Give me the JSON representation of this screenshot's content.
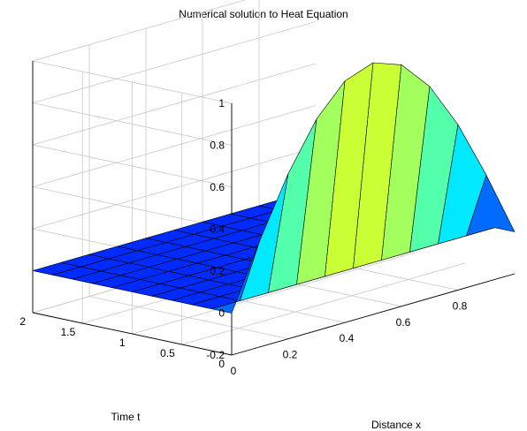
{
  "chart_data": {
    "type": "surface",
    "title": "Numerical solution to Heat Equation",
    "xlabel": "Distance x",
    "ylabel": "Time t",
    "zlabel": "",
    "x_ticks": [
      "0",
      "0.2",
      "0.4",
      "0.6",
      "0.8"
    ],
    "y_ticks": [
      "0",
      "0.5",
      "1",
      "1.5",
      "2"
    ],
    "z_ticks": [
      "-0.2",
      "0",
      "0.2",
      "0.4",
      "0.6",
      "0.8",
      "1"
    ],
    "xlim": [
      0,
      1
    ],
    "ylim": [
      0,
      2
    ],
    "zlim": [
      -0.2,
      1
    ],
    "grid": true,
    "colormap": "jet",
    "x": [
      0,
      0.1,
      0.2,
      0.3,
      0.4,
      0.5,
      0.6,
      0.7,
      0.8,
      0.9,
      1.0
    ],
    "initial_condition": {
      "t": 0,
      "u": [
        0,
        0.309,
        0.588,
        0.809,
        0.951,
        1.0,
        0.951,
        0.809,
        0.588,
        0.309,
        0
      ]
    },
    "later_times": {
      "t": [
        0.2,
        0.4,
        0.6,
        0.8,
        1.0,
        1.2,
        1.4,
        1.6,
        1.8,
        2.0
      ],
      "u": 0
    }
  }
}
